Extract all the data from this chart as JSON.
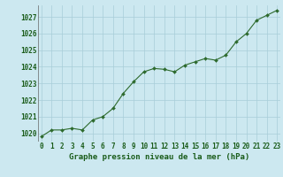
{
  "x": [
    0,
    1,
    2,
    3,
    4,
    5,
    6,
    7,
    8,
    9,
    10,
    11,
    12,
    13,
    14,
    15,
    16,
    17,
    18,
    19,
    20,
    21,
    22,
    23
  ],
  "y": [
    1019.8,
    1020.2,
    1020.2,
    1020.3,
    1020.2,
    1020.8,
    1021.0,
    1021.5,
    1022.4,
    1023.1,
    1023.7,
    1023.9,
    1023.85,
    1023.7,
    1024.1,
    1024.3,
    1024.5,
    1024.4,
    1024.7,
    1025.5,
    1026.0,
    1026.8,
    1027.1,
    1027.4
  ],
  "ylim": [
    1019.5,
    1027.7
  ],
  "yticks": [
    1020,
    1021,
    1022,
    1023,
    1024,
    1025,
    1026,
    1027
  ],
  "xticks": [
    0,
    1,
    2,
    3,
    4,
    5,
    6,
    7,
    8,
    9,
    10,
    11,
    12,
    13,
    14,
    15,
    16,
    17,
    18,
    19,
    20,
    21,
    22,
    23
  ],
  "xlabel": "Graphe pression niveau de la mer (hPa)",
  "line_color": "#2d6a2d",
  "marker_color": "#2d6a2d",
  "bg_color": "#cce8f0",
  "grid_color": "#a8cdd8",
  "text_color": "#1a5c1a",
  "xlabel_fontsize": 6.5,
  "tick_fontsize": 5.5
}
